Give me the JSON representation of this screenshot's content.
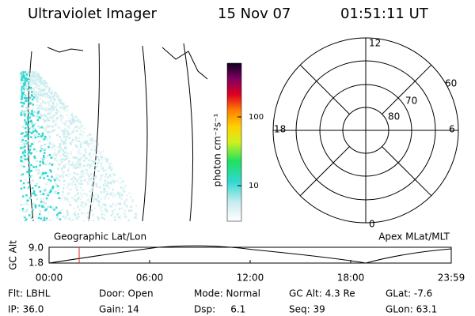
{
  "header": {
    "title": "Ultraviolet Imager",
    "date": "15 Nov 07",
    "time": "01:51:11 UT"
  },
  "colorbar": {
    "label": "photon cm⁻²s⁻¹",
    "ticks": [
      "100",
      "10"
    ]
  },
  "polar": {
    "hour_labels": [
      "12",
      "18",
      "6",
      "0"
    ],
    "lat_labels": [
      "60",
      "70",
      "80"
    ]
  },
  "timeline": {
    "left_title": "Geographic Lat/Lon",
    "right_title": "Apex MLat/MLT",
    "y_label": "GC Alt",
    "yticks": [
      "9.0",
      "1.8"
    ],
    "xticks": [
      "00:00",
      "06:00",
      "12:00",
      "18:00",
      "23:59"
    ]
  },
  "info": {
    "rows": [
      [
        "Flt: LBHL",
        "Door: Open",
        "Mode: Normal",
        "GC Alt: 4.3 Re",
        "GLat: -7.6"
      ],
      [
        "IP: 36.0",
        "Gain: 14",
        "Dsp:     6.1",
        "Seq: 39",
        "GLon: 63.1"
      ]
    ]
  }
}
